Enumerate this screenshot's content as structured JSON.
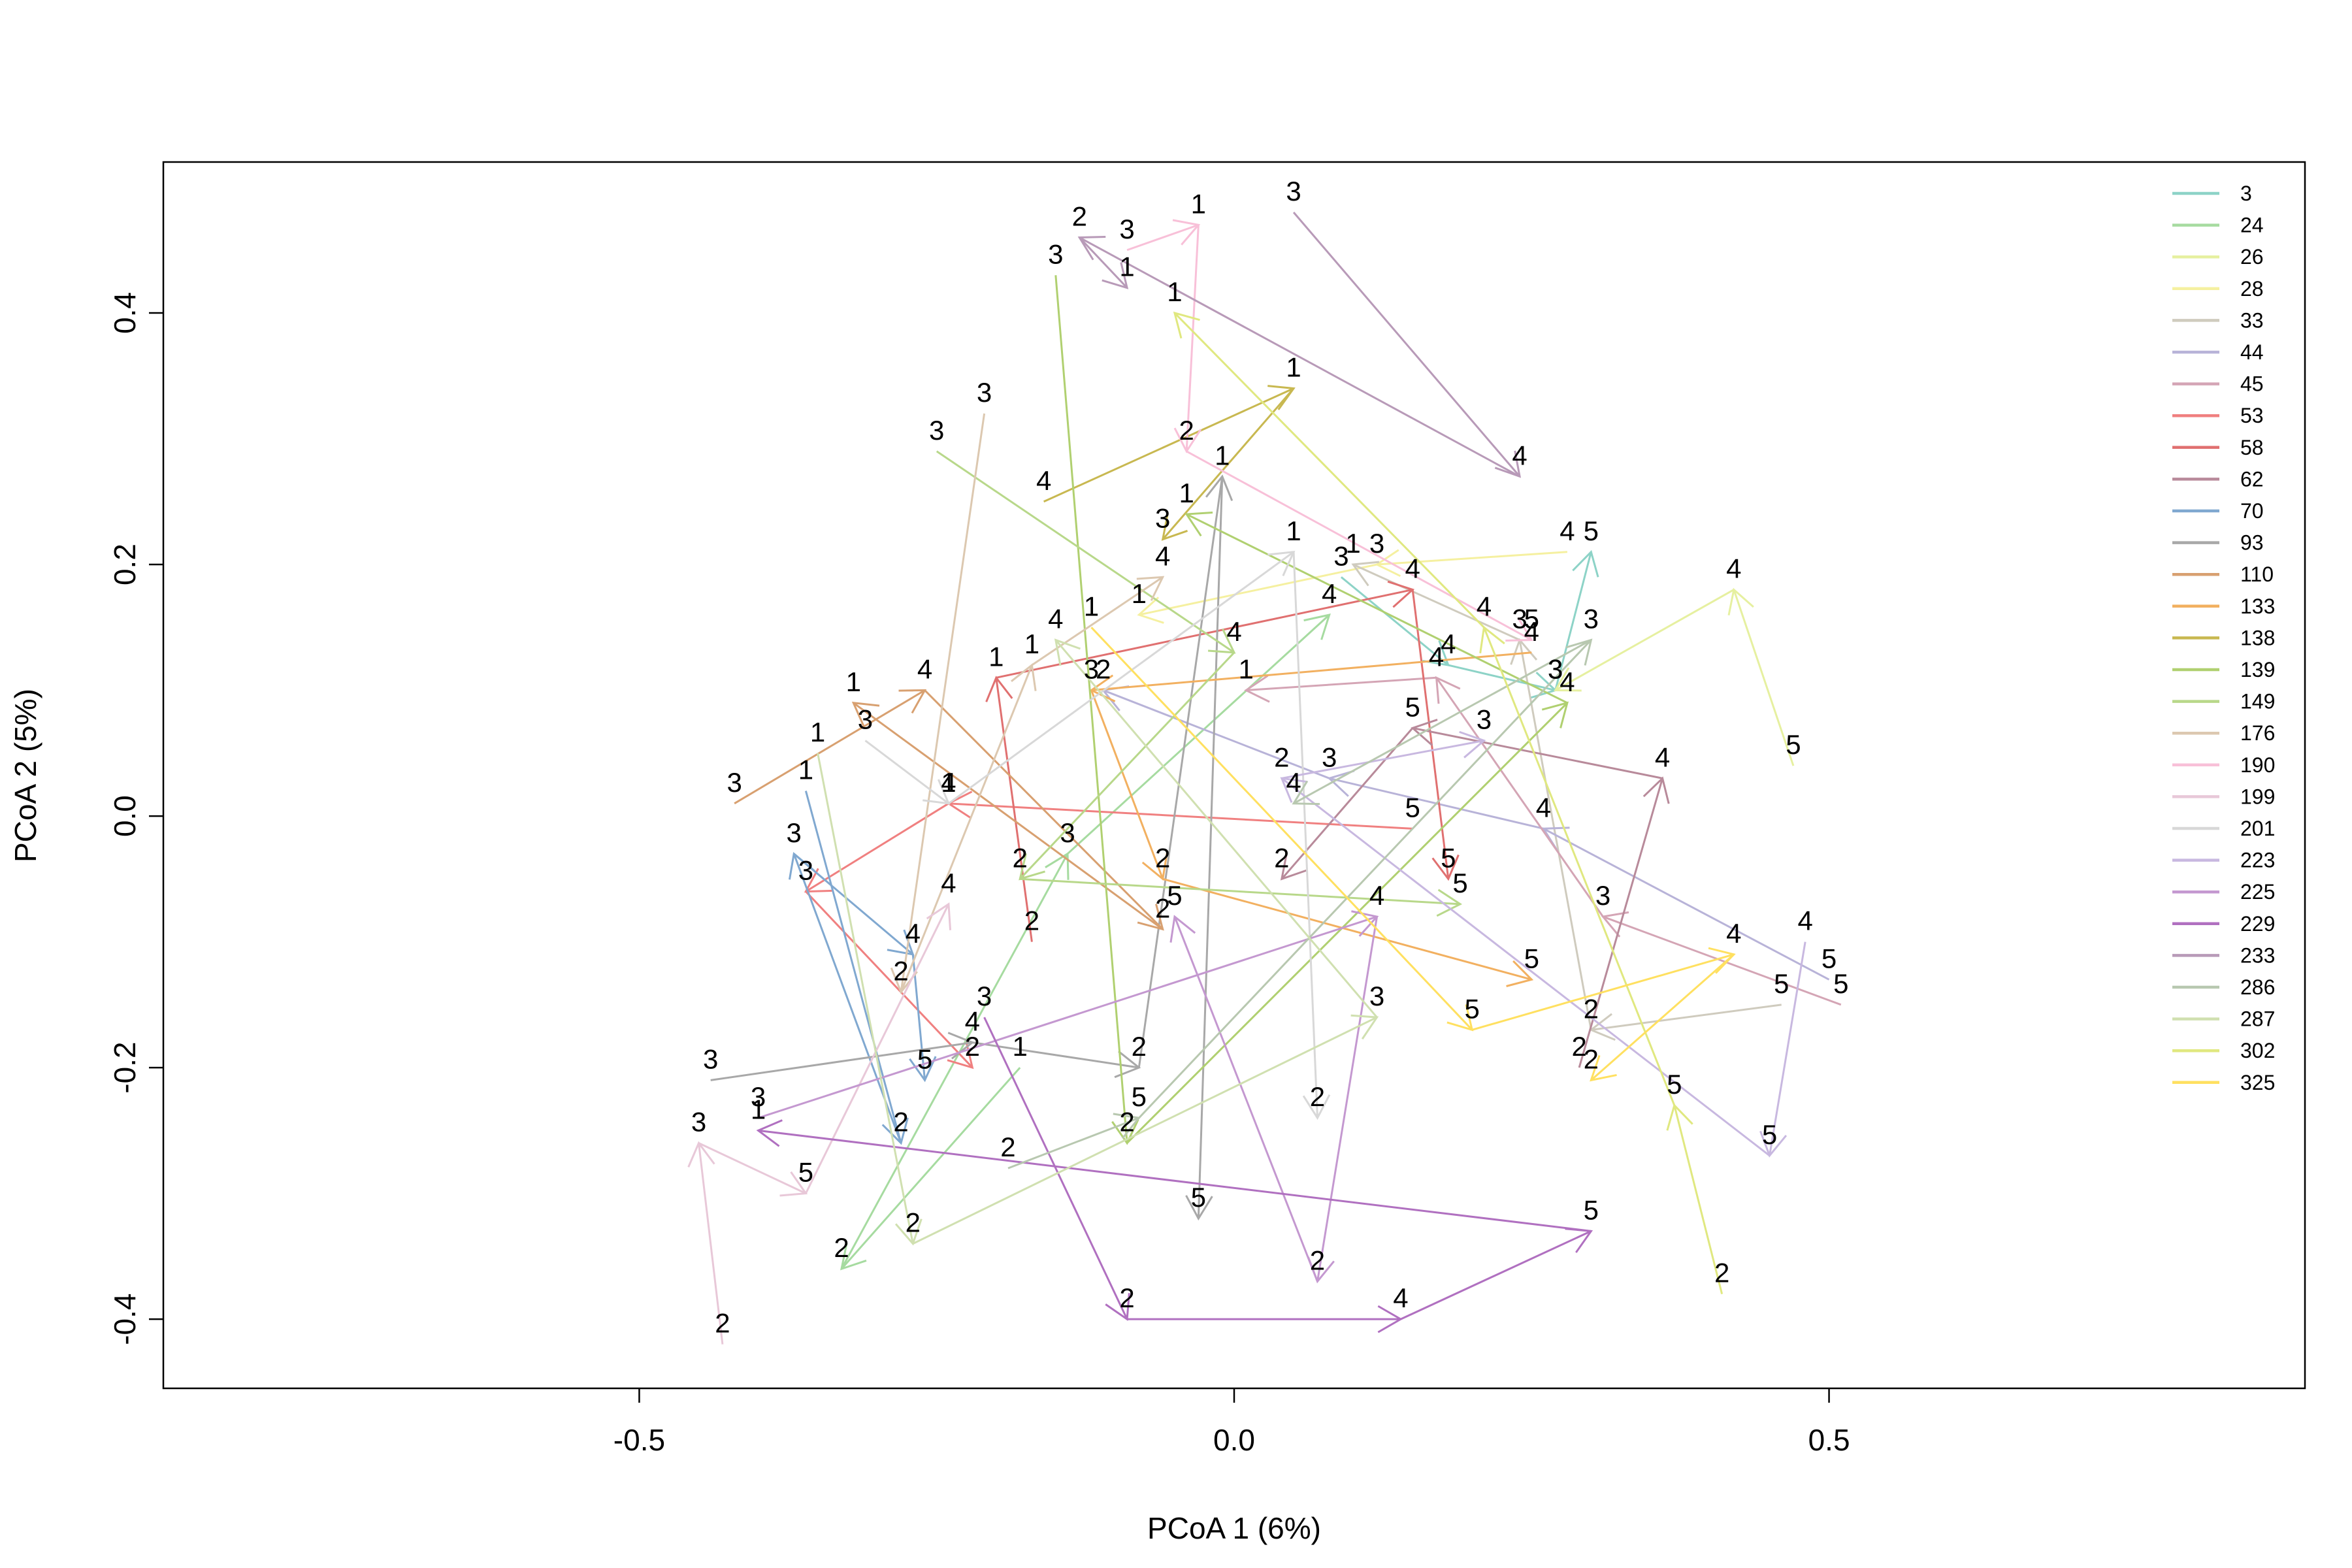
{
  "chart_data": {
    "type": "scatter",
    "subtype": "pcoa-trajectory-arrows",
    "title": "",
    "xlabel": "PCoA 1 (6%)",
    "ylabel": "PCoA 2 (5%)",
    "xlim": [
      -0.9,
      0.9
    ],
    "ylim": [
      -0.455,
      0.52
    ],
    "xticks": [
      -0.5,
      0.0,
      0.5
    ],
    "xtick_labels": [
      "-0.5",
      "0.0",
      "0.5"
    ],
    "yticks": [
      -0.4,
      -0.2,
      0.0,
      0.2,
      0.4
    ],
    "ytick_labels": [
      "-0.4",
      "-0.2",
      "0.0",
      "0.2",
      "0.4"
    ],
    "grid": false,
    "legend_position": "top-right",
    "series": [
      {
        "name": "3",
        "color": "#8DD3C7",
        "points": [
          {
            "label": "3",
            "x": 0.09,
            "y": 0.19
          },
          {
            "label": "4",
            "x": 0.18,
            "y": 0.12
          },
          {
            "label": "3",
            "x": 0.27,
            "y": 0.1
          },
          {
            "label": "5",
            "x": 0.3,
            "y": 0.21
          }
        ]
      },
      {
        "name": "24",
        "color": "#A6DBA0",
        "points": [
          {
            "label": "1",
            "x": -0.18,
            "y": -0.2
          },
          {
            "label": "2",
            "x": -0.33,
            "y": -0.36
          },
          {
            "label": "3",
            "x": -0.14,
            "y": -0.03
          },
          {
            "label": "4",
            "x": 0.08,
            "y": 0.16
          }
        ]
      },
      {
        "name": "26",
        "color": "#E6F0A0",
        "points": [
          {
            "label": "5",
            "x": 0.47,
            "y": 0.04
          },
          {
            "label": "4",
            "x": 0.42,
            "y": 0.18
          },
          {
            "label": "3",
            "x": 0.27,
            "y": 0.1
          }
        ]
      },
      {
        "name": "28",
        "color": "#F5F0A0",
        "points": [
          {
            "label": "4",
            "x": 0.28,
            "y": 0.21
          },
          {
            "label": "3",
            "x": 0.12,
            "y": 0.2
          },
          {
            "label": "1",
            "x": -0.08,
            "y": 0.16
          }
        ]
      },
      {
        "name": "33",
        "color": "#CFCBBE",
        "points": [
          {
            "label": "5",
            "x": 0.46,
            "y": -0.15
          },
          {
            "label": "2",
            "x": 0.3,
            "y": -0.17
          },
          {
            "label": "3",
            "x": 0.24,
            "y": 0.14
          },
          {
            "label": "1",
            "x": 0.1,
            "y": 0.2
          }
        ]
      },
      {
        "name": "44",
        "color": "#B8B3D8",
        "points": [
          {
            "label": "5",
            "x": 0.5,
            "y": -0.13
          },
          {
            "label": "4",
            "x": 0.26,
            "y": -0.01
          },
          {
            "label": "3",
            "x": 0.08,
            "y": 0.03
          },
          {
            "label": "2",
            "x": -0.11,
            "y": 0.1
          }
        ]
      },
      {
        "name": "45",
        "color": "#D4A5B5",
        "points": [
          {
            "label": "5",
            "x": 0.51,
            "y": -0.15
          },
          {
            "label": "3",
            "x": 0.31,
            "y": -0.08
          },
          {
            "label": "4",
            "x": 0.17,
            "y": 0.11
          },
          {
            "label": "1",
            "x": 0.01,
            "y": 0.1
          }
        ]
      },
      {
        "name": "53",
        "color": "#F08080",
        "points": [
          {
            "label": "5",
            "x": 0.15,
            "y": -0.01
          },
          {
            "label": "1",
            "x": -0.24,
            "y": 0.01
          },
          {
            "label": "3",
            "x": -0.36,
            "y": -0.06
          },
          {
            "label": "2",
            "x": -0.22,
            "y": -0.2
          }
        ]
      },
      {
        "name": "58",
        "color": "#E07070",
        "points": [
          {
            "label": "2",
            "x": -0.17,
            "y": -0.1
          },
          {
            "label": "1",
            "x": -0.2,
            "y": 0.11
          },
          {
            "label": "4",
            "x": 0.15,
            "y": 0.18
          },
          {
            "label": "5",
            "x": 0.18,
            "y": -0.05
          }
        ]
      },
      {
        "name": "62",
        "color": "#B88A9A",
        "points": [
          {
            "label": "2",
            "x": 0.29,
            "y": -0.2
          },
          {
            "label": "4",
            "x": 0.36,
            "y": 0.03
          },
          {
            "label": "5",
            "x": 0.15,
            "y": 0.07
          },
          {
            "label": "2",
            "x": 0.04,
            "y": -0.05
          }
        ]
      },
      {
        "name": "70",
        "color": "#80A8D0",
        "points": [
          {
            "label": "1",
            "x": -0.36,
            "y": 0.02
          },
          {
            "label": "2",
            "x": -0.28,
            "y": -0.26
          },
          {
            "label": "3",
            "x": -0.37,
            "y": -0.03
          },
          {
            "label": "4",
            "x": -0.27,
            "y": -0.11
          },
          {
            "label": "5",
            "x": -0.26,
            "y": -0.21
          }
        ]
      },
      {
        "name": "93",
        "color": "#A8A8A8",
        "points": [
          {
            "label": "3",
            "x": -0.44,
            "y": -0.21
          },
          {
            "label": "4",
            "x": -0.22,
            "y": -0.18
          },
          {
            "label": "2",
            "x": -0.08,
            "y": -0.2
          },
          {
            "label": "1",
            "x": -0.01,
            "y": 0.27
          },
          {
            "label": "5",
            "x": -0.03,
            "y": -0.32
          }
        ]
      },
      {
        "name": "110",
        "color": "#D8A070",
        "points": [
          {
            "label": "3",
            "x": -0.42,
            "y": 0.01
          },
          {
            "label": "4",
            "x": -0.26,
            "y": 0.1
          },
          {
            "label": "2",
            "x": -0.06,
            "y": -0.09
          },
          {
            "label": "1",
            "x": -0.32,
            "y": 0.09
          }
        ]
      },
      {
        "name": "133",
        "color": "#F2B060",
        "points": [
          {
            "label": "4",
            "x": 0.25,
            "y": 0.13
          },
          {
            "label": "3",
            "x": -0.12,
            "y": 0.1
          },
          {
            "label": "2",
            "x": -0.06,
            "y": -0.05
          },
          {
            "label": "5",
            "x": 0.25,
            "y": -0.13
          }
        ]
      },
      {
        "name": "138",
        "color": "#C8B850",
        "points": [
          {
            "label": "4",
            "x": -0.16,
            "y": 0.25
          },
          {
            "label": "1",
            "x": 0.05,
            "y": 0.34
          },
          {
            "label": "3",
            "x": -0.06,
            "y": 0.22
          }
        ]
      },
      {
        "name": "139",
        "color": "#B0D070",
        "points": [
          {
            "label": "3",
            "x": -0.15,
            "y": 0.43
          },
          {
            "label": "2",
            "x": -0.09,
            "y": -0.26
          },
          {
            "label": "4",
            "x": 0.28,
            "y": 0.09
          },
          {
            "label": "1",
            "x": -0.04,
            "y": 0.24
          }
        ]
      },
      {
        "name": "149",
        "color": "#B8D88A",
        "points": [
          {
            "label": "3",
            "x": -0.25,
            "y": 0.29
          },
          {
            "label": "4",
            "x": 0.0,
            "y": 0.13
          },
          {
            "label": "2",
            "x": -0.18,
            "y": -0.05
          },
          {
            "label": "5",
            "x": 0.19,
            "y": -0.07
          }
        ]
      },
      {
        "name": "176",
        "color": "#DCC8B0",
        "points": [
          {
            "label": "3",
            "x": -0.21,
            "y": 0.32
          },
          {
            "label": "2",
            "x": -0.28,
            "y": -0.14
          },
          {
            "label": "1",
            "x": -0.17,
            "y": 0.12
          },
          {
            "label": "4",
            "x": -0.06,
            "y": 0.19
          }
        ]
      },
      {
        "name": "190",
        "color": "#F8C0D8",
        "points": [
          {
            "label": "3",
            "x": -0.09,
            "y": 0.45
          },
          {
            "label": "1",
            "x": -0.03,
            "y": 0.47
          },
          {
            "label": "2",
            "x": -0.04,
            "y": 0.29
          },
          {
            "label": "5",
            "x": 0.25,
            "y": 0.14
          }
        ]
      },
      {
        "name": "199",
        "color": "#E8C8D8",
        "points": [
          {
            "label": "2",
            "x": -0.43,
            "y": -0.42
          },
          {
            "label": "3",
            "x": -0.45,
            "y": -0.26
          },
          {
            "label": "5",
            "x": -0.36,
            "y": -0.3
          },
          {
            "label": "4",
            "x": -0.24,
            "y": -0.07
          }
        ]
      },
      {
        "name": "201",
        "color": "#D8D8D8",
        "points": [
          {
            "label": "3",
            "x": -0.31,
            "y": 0.06
          },
          {
            "label": "4",
            "x": -0.24,
            "y": 0.01
          },
          {
            "label": "1",
            "x": 0.05,
            "y": 0.21
          },
          {
            "label": "2",
            "x": 0.07,
            "y": -0.24
          }
        ]
      },
      {
        "name": "223",
        "color": "#C8B8E0",
        "points": [
          {
            "label": "4",
            "x": 0.48,
            "y": -0.1
          },
          {
            "label": "5",
            "x": 0.45,
            "y": -0.27
          },
          {
            "label": "2",
            "x": 0.04,
            "y": 0.03
          },
          {
            "label": "3",
            "x": 0.21,
            "y": 0.06
          }
        ]
      },
      {
        "name": "225",
        "color": "#C498D0",
        "points": [
          {
            "label": "3",
            "x": -0.4,
            "y": -0.24
          },
          {
            "label": "4",
            "x": 0.12,
            "y": -0.08
          },
          {
            "label": "2",
            "x": 0.07,
            "y": -0.37
          },
          {
            "label": "5",
            "x": -0.05,
            "y": -0.08
          }
        ]
      },
      {
        "name": "229",
        "color": "#B070C0",
        "points": [
          {
            "label": "3",
            "x": -0.21,
            "y": -0.16
          },
          {
            "label": "2",
            "x": -0.09,
            "y": -0.4
          },
          {
            "label": "4",
            "x": 0.14,
            "y": -0.4
          },
          {
            "label": "5",
            "x": 0.3,
            "y": -0.33
          },
          {
            "label": "1",
            "x": -0.4,
            "y": -0.25
          }
        ]
      },
      {
        "name": "233",
        "color": "#B89AB8",
        "points": [
          {
            "label": "3",
            "x": 0.05,
            "y": 0.48
          },
          {
            "label": "4",
            "x": 0.24,
            "y": 0.27
          },
          {
            "label": "2",
            "x": -0.13,
            "y": 0.46
          },
          {
            "label": "1",
            "x": -0.09,
            "y": 0.42
          }
        ]
      },
      {
        "name": "286",
        "color": "#B8C8B0",
        "points": [
          {
            "label": "2",
            "x": -0.19,
            "y": -0.28
          },
          {
            "label": "5",
            "x": -0.08,
            "y": -0.24
          },
          {
            "label": "3",
            "x": 0.3,
            "y": 0.14
          },
          {
            "label": "4",
            "x": 0.05,
            "y": 0.01
          }
        ]
      },
      {
        "name": "287",
        "color": "#D0E0B0",
        "points": [
          {
            "label": "1",
            "x": -0.35,
            "y": 0.05
          },
          {
            "label": "2",
            "x": -0.27,
            "y": -0.34
          },
          {
            "label": "3",
            "x": 0.12,
            "y": -0.16
          },
          {
            "label": "4",
            "x": -0.15,
            "y": 0.14
          }
        ]
      },
      {
        "name": "302",
        "color": "#E0E880",
        "points": [
          {
            "label": "2",
            "x": 0.41,
            "y": -0.38
          },
          {
            "label": "5",
            "x": 0.37,
            "y": -0.23
          },
          {
            "label": "4",
            "x": 0.21,
            "y": 0.15
          },
          {
            "label": "1",
            "x": -0.05,
            "y": 0.4
          }
        ]
      },
      {
        "name": "325",
        "color": "#FFE060",
        "points": [
          {
            "label": "1",
            "x": -0.12,
            "y": 0.15
          },
          {
            "label": "5",
            "x": 0.2,
            "y": -0.17
          },
          {
            "label": "4",
            "x": 0.42,
            "y": -0.11
          },
          {
            "label": "2",
            "x": 0.3,
            "y": -0.21
          }
        ]
      }
    ]
  }
}
